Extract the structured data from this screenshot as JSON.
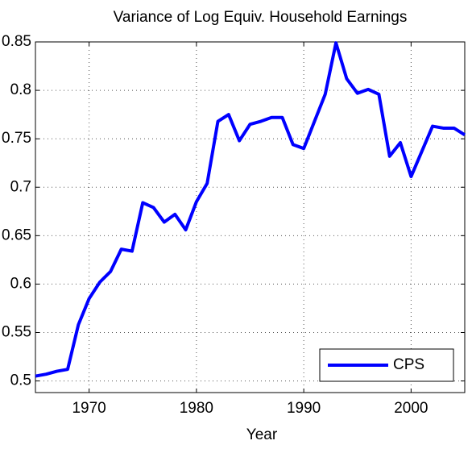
{
  "chart_data": {
    "type": "line",
    "title": "Variance of Log Equiv. Household Earnings",
    "xlabel": "Year",
    "x": [
      1965,
      1966,
      1967,
      1968,
      1969,
      1970,
      1971,
      1972,
      1973,
      1974,
      1975,
      1976,
      1977,
      1978,
      1979,
      1980,
      1981,
      1982,
      1983,
      1984,
      1985,
      1986,
      1987,
      1988,
      1989,
      1990,
      1991,
      1992,
      1993,
      1994,
      1995,
      1996,
      1997,
      1998,
      1999,
      2000,
      2001,
      2002,
      2003,
      2004,
      2005
    ],
    "series": [
      {
        "name": "CPS",
        "color": "#0000ff",
        "values": [
          0.505,
          0.507,
          0.51,
          0.512,
          0.558,
          0.585,
          0.602,
          0.613,
          0.636,
          0.634,
          0.684,
          0.679,
          0.664,
          0.672,
          0.656,
          0.685,
          0.704,
          0.768,
          0.775,
          0.748,
          0.765,
          0.768,
          0.772,
          0.772,
          0.744,
          0.74,
          0.768,
          0.796,
          0.849,
          0.812,
          0.797,
          0.801,
          0.796,
          0.732,
          0.746,
          0.711,
          0.737,
          0.763,
          0.761,
          0.761,
          0.754
        ]
      }
    ],
    "xlim": [
      1965,
      2005
    ],
    "xticks": [
      1970,
      1980,
      1990,
      2000
    ],
    "ylim": [
      0.488,
      0.85
    ],
    "yticks": [
      0.5,
      0.55,
      0.6,
      0.65,
      0.7,
      0.75,
      0.8,
      0.85
    ],
    "grid": true,
    "legend": "lower right"
  }
}
